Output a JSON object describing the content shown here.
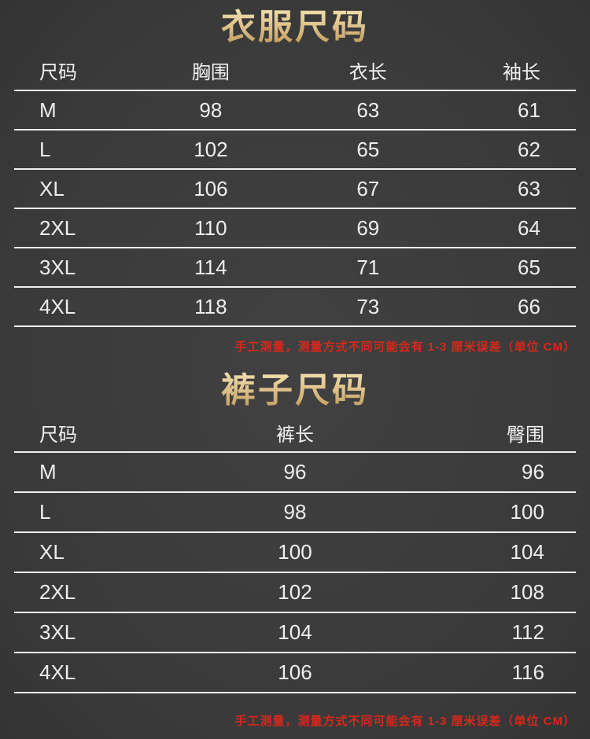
{
  "theme": {
    "background": "#3c3c3c",
    "gold_top": "#f3e0ae",
    "gold_bottom": "#bd9455",
    "text_color": "#eeeeee",
    "line_color": "#eff0ef",
    "note_color": "#d6281b"
  },
  "clothing": {
    "title": "衣服尺码",
    "headers": [
      "尺码",
      "胸围",
      "衣长",
      "袖长"
    ],
    "rows": [
      [
        "M",
        "98",
        "63",
        "61"
      ],
      [
        "L",
        "102",
        "65",
        "62"
      ],
      [
        "XL",
        "106",
        "67",
        "63"
      ],
      [
        "2XL",
        "110",
        "69",
        "64"
      ],
      [
        "3XL",
        "114",
        "71",
        "65"
      ],
      [
        "4XL",
        "118",
        "73",
        "66"
      ]
    ],
    "note": "手工测量，测量方式不同可能会有 1-3 厘米误差（单位 CM）"
  },
  "pants": {
    "title": "裤子尺码",
    "headers": [
      "尺码",
      "裤长",
      "臀围"
    ],
    "rows": [
      [
        "M",
        "96",
        "96"
      ],
      [
        "L",
        "98",
        "100"
      ],
      [
        "XL",
        "100",
        "104"
      ],
      [
        "2XL",
        "102",
        "108"
      ],
      [
        "3XL",
        "104",
        "112"
      ],
      [
        "4XL",
        "106",
        "116"
      ]
    ],
    "note": "手工测量，测量方式不同可能会有 1-3 厘米误差（单位 CM）"
  }
}
